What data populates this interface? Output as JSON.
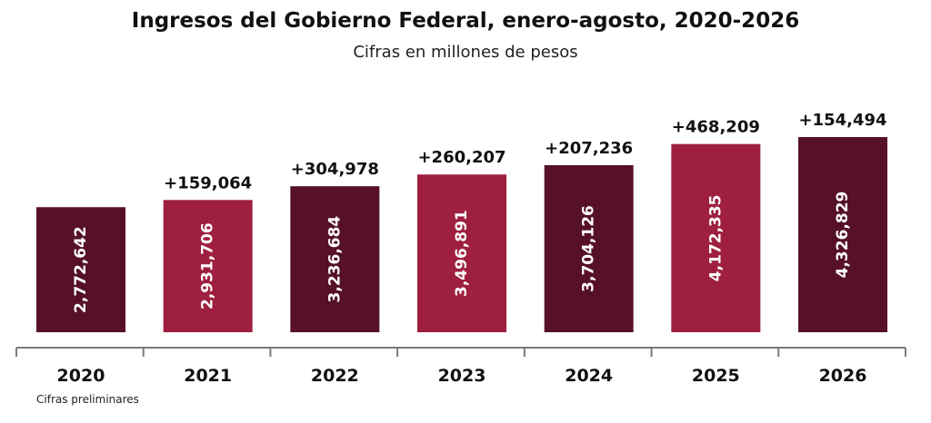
{
  "chart_data": {
    "type": "bar",
    "title": "Ingresos del Gobierno Federal, enero-agosto, 2020-2026",
    "subtitle": "Cifras en millones de pesos",
    "categories": [
      "2020",
      "2021",
      "2022",
      "2023",
      "2024",
      "2025",
      "2026"
    ],
    "values": [
      2772642,
      2931706,
      3236684,
      3496891,
      3704126,
      4172335,
      4326829
    ],
    "value_labels": [
      "2,772,642",
      "2,931,706",
      "3,236,684",
      "3,496,891",
      "3,704,126",
      "4,172,335",
      "4,326,829"
    ],
    "change_labels": [
      "",
      "+159,064",
      "+304,978",
      "+260,207",
      "+207,236",
      "+468,209",
      "+154,494"
    ],
    "bar_colors": [
      "#561129",
      "#9E1F3F",
      "#561129",
      "#9E1F3F",
      "#561129",
      "#9E1F3F",
      "#561129"
    ],
    "grid": false,
    "legend": "none",
    "footnote": "Cifras preliminares"
  }
}
